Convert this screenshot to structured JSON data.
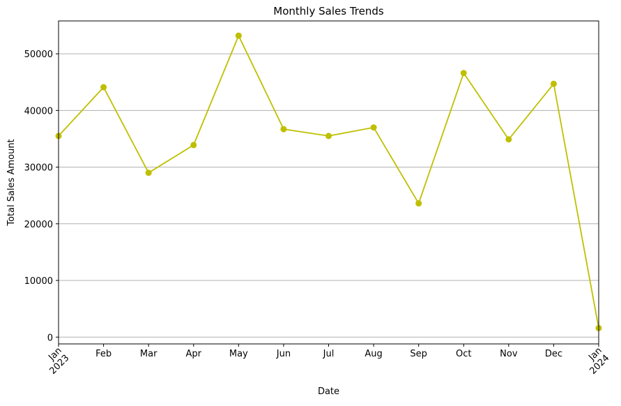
{
  "chart_data": {
    "type": "line",
    "title": "Monthly Sales Trends",
    "xlabel": "Date",
    "ylabel": "Total Sales Amount",
    "x_tick_labels": [
      {
        "lines": [
          "Jan",
          "2023"
        ],
        "rotated": true
      },
      {
        "lines": [
          "Feb"
        ],
        "rotated": false
      },
      {
        "lines": [
          "Mar"
        ],
        "rotated": false
      },
      {
        "lines": [
          "Apr"
        ],
        "rotated": false
      },
      {
        "lines": [
          "May"
        ],
        "rotated": false
      },
      {
        "lines": [
          "Jun"
        ],
        "rotated": false
      },
      {
        "lines": [
          "Jul"
        ],
        "rotated": false
      },
      {
        "lines": [
          "Aug"
        ],
        "rotated": false
      },
      {
        "lines": [
          "Sep"
        ],
        "rotated": false
      },
      {
        "lines": [
          "Oct"
        ],
        "rotated": false
      },
      {
        "lines": [
          "Nov"
        ],
        "rotated": false
      },
      {
        "lines": [
          "Dec"
        ],
        "rotated": false
      },
      {
        "lines": [
          "Jan",
          "2024"
        ],
        "rotated": true
      }
    ],
    "x": [
      "2023-01",
      "2023-02",
      "2023-03",
      "2023-04",
      "2023-05",
      "2023-06",
      "2023-07",
      "2023-08",
      "2023-09",
      "2023-10",
      "2023-11",
      "2023-12",
      "2024-01"
    ],
    "series": [
      {
        "values": [
          35500,
          44100,
          29000,
          33900,
          53200,
          36700,
          35500,
          37000,
          23600,
          46600,
          34900,
          44700,
          1600
        ],
        "color": "#bfbf00",
        "marker": "circle"
      }
    ],
    "y_ticks": [
      0,
      10000,
      20000,
      30000,
      40000,
      50000
    ],
    "ylim": [
      -1200,
      55800
    ],
    "grid": {
      "y": true,
      "x": false,
      "color": "#b0b0b0"
    },
    "legend": "none"
  }
}
